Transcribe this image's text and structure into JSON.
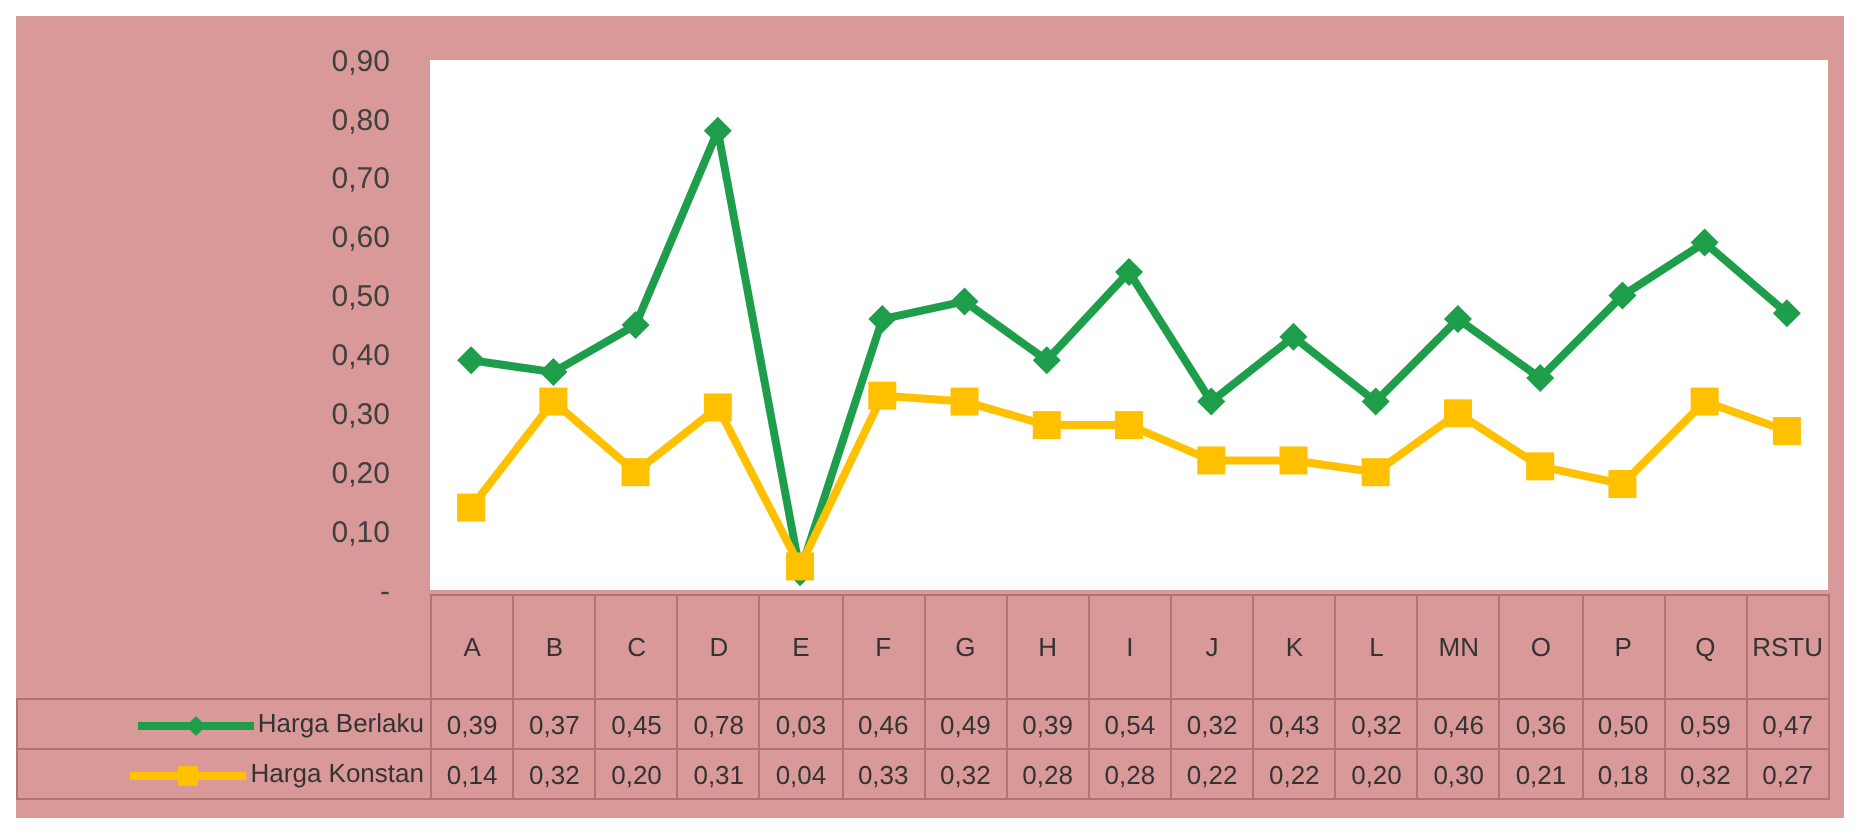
{
  "chart_data": {
    "type": "line",
    "categories": [
      "A",
      "B",
      "C",
      "D",
      "E",
      "F",
      "G",
      "H",
      "I",
      "J",
      "K",
      "L",
      "MN",
      "O",
      "P",
      "Q",
      "RSTU"
    ],
    "series": [
      {
        "name": "Harga Berlaku",
        "color": "#1e9e4a",
        "marker": "diamond",
        "values": [
          0.39,
          0.37,
          0.45,
          0.78,
          0.03,
          0.46,
          0.49,
          0.39,
          0.54,
          0.32,
          0.43,
          0.32,
          0.46,
          0.36,
          0.5,
          0.59,
          0.47
        ],
        "value_labels": [
          "0,39",
          "0,37",
          "0,45",
          "0,78",
          "0,03",
          "0,46",
          "0,49",
          "0,39",
          "0,54",
          "0,32",
          "0,43",
          "0,32",
          "0,46",
          "0,36",
          "0,50",
          "0,59",
          "0,47"
        ]
      },
      {
        "name": "Harga Konstan",
        "color": "#ffc000",
        "marker": "square",
        "values": [
          0.14,
          0.32,
          0.2,
          0.31,
          0.04,
          0.33,
          0.32,
          0.28,
          0.28,
          0.22,
          0.22,
          0.2,
          0.3,
          0.21,
          0.18,
          0.32,
          0.27
        ],
        "value_labels": [
          "0,14",
          "0,32",
          "0,20",
          "0,31",
          "0,04",
          "0,33",
          "0,32",
          "0,28",
          "0,28",
          "0,22",
          "0,22",
          "0,20",
          "0,30",
          "0,21",
          "0,18",
          "0,32",
          "0,27"
        ]
      }
    ],
    "ylim": [
      0,
      0.9
    ],
    "yticks": [
      {
        "value": 0,
        "label": "-"
      },
      {
        "value": 0.1,
        "label": "0,10"
      },
      {
        "value": 0.2,
        "label": "0,20"
      },
      {
        "value": 0.3,
        "label": "0,30"
      },
      {
        "value": 0.4,
        "label": "0,40"
      },
      {
        "value": 0.5,
        "label": "0,50"
      },
      {
        "value": 0.6,
        "label": "0,60"
      },
      {
        "value": 0.7,
        "label": "0,70"
      },
      {
        "value": 0.8,
        "label": "0,80"
      },
      {
        "value": 0.9,
        "label": "0,90"
      }
    ],
    "grid": false,
    "legend": "bottom",
    "line_style": "solid"
  }
}
